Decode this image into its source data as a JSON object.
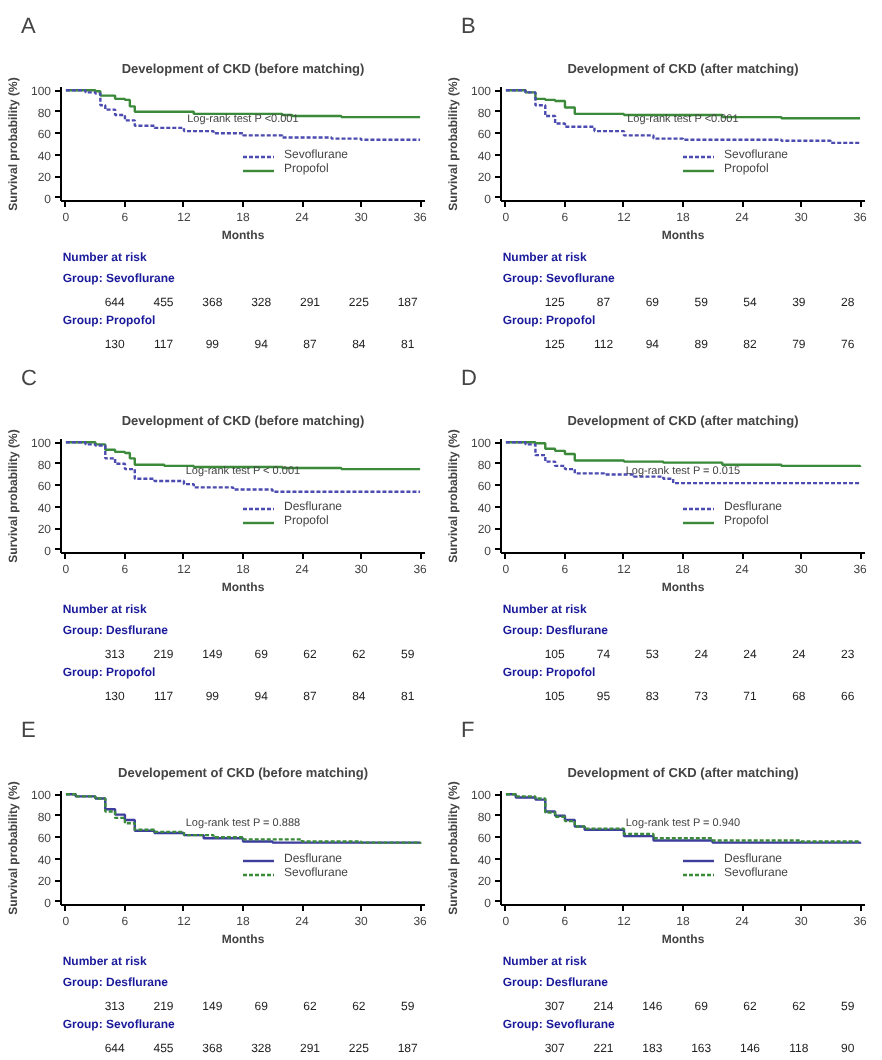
{
  "chart_data": [
    {
      "type": "step",
      "title": "Development of CKD (before matching)",
      "xlabel": "Months",
      "ylabel": "Survival probability (%)",
      "xlim": [
        -0.5,
        36.5
      ],
      "ylim": [
        -3,
        103
      ],
      "xticks": [
        0,
        6,
        12,
        18,
        24,
        30,
        36
      ],
      "yticks": [
        0,
        20,
        40,
        60,
        80,
        100
      ],
      "legend": "right",
      "annotations": [
        "A",
        "Log-rank test P <0.001",
        "Number at risk",
        "Group: Sevoflurane",
        "644 455 368 328 291 225 187",
        "Group: Propofol",
        "130 117 99 94 87 84 81"
      ],
      "series": [
        {
          "name": "Sevoflurane",
          "color": "#4b4bb0",
          "line_style": "dashed",
          "x": [
            0,
            2,
            3,
            3.5,
            4,
            5,
            6,
            7,
            9,
            12,
            15,
            18,
            22,
            27,
            30,
            36
          ],
          "values": [
            100,
            98,
            97,
            86,
            82,
            77,
            72,
            67,
            65,
            62,
            60,
            58,
            56,
            55,
            54,
            54
          ]
        },
        {
          "name": "Propofol",
          "color": "#3a8a3a",
          "line_style": "solid",
          "x": [
            0,
            3,
            3.5,
            5,
            6,
            6.5,
            7,
            13,
            22,
            23,
            28,
            36
          ],
          "values": [
            100,
            99,
            95,
            92,
            91,
            85,
            80,
            78,
            77,
            76,
            75,
            75
          ]
        }
      ]
    },
    {
      "type": "step",
      "title": "Development of CKD (after matching)",
      "xlabel": "Months",
      "ylabel": "Survival probability (%)",
      "xlim": [
        -0.5,
        36.5
      ],
      "ylim": [
        -3,
        103
      ],
      "xticks": [
        0,
        6,
        12,
        18,
        24,
        30,
        36
      ],
      "yticks": [
        0,
        20,
        40,
        60,
        80,
        100
      ],
      "legend": "right",
      "annotations": [
        "B",
        "Log-rank test P <0.001",
        "Number at risk",
        "Group: Sevoflurane",
        "125 87 69 59 54 39 28",
        "Group: Propofol",
        "125 112 94 89 82 79 76"
      ],
      "series": [
        {
          "name": "Sevoflurane",
          "color": "#4b4bb0",
          "line_style": "dashed",
          "x": [
            0,
            2,
            3,
            4,
            5,
            6,
            9,
            12,
            15,
            18,
            28,
            33,
            36
          ],
          "values": [
            100,
            98,
            86,
            76,
            69,
            66,
            62,
            58,
            55,
            54,
            53,
            51,
            51
          ]
        },
        {
          "name": "Propofol",
          "color": "#3a8a3a",
          "line_style": "solid",
          "x": [
            0,
            2,
            3,
            4,
            5,
            6,
            7,
            12,
            22,
            28,
            36
          ],
          "values": [
            100,
            98,
            92,
            91,
            90,
            84,
            78,
            77,
            75,
            74,
            74
          ]
        }
      ]
    },
    {
      "type": "step",
      "title": "Development of CKD (before matching)",
      "xlabel": "Months",
      "ylabel": "Survival probability (%)",
      "xlim": [
        -0.5,
        36.5
      ],
      "ylim": [
        -3,
        103
      ],
      "xticks": [
        0,
        6,
        12,
        18,
        24,
        30,
        36
      ],
      "yticks": [
        0,
        20,
        40,
        60,
        80,
        100
      ],
      "legend": "right",
      "annotations": [
        "C",
        "Log-rank test P < 0.001",
        "Number at risk",
        "Group: Desflurane",
        "313 219 149 69 62 62 59",
        "Group: Propofol",
        "130 117 99 94 87 84 81"
      ],
      "series": [
        {
          "name": "Desflurane",
          "color": "#4b4bb0",
          "line_style": "dashed",
          "x": [
            0,
            2,
            3,
            4,
            5,
            6,
            7,
            9,
            12,
            13,
            17,
            21,
            36
          ],
          "values": [
            100,
            98,
            97,
            85,
            80,
            75,
            66,
            64,
            61,
            58,
            56,
            54,
            54
          ]
        },
        {
          "name": "Propofol",
          "color": "#3a8a3a",
          "line_style": "solid",
          "x": [
            0,
            3,
            4,
            5,
            6,
            6.5,
            7,
            10,
            13,
            22,
            28,
            36
          ],
          "values": [
            100,
            98,
            93,
            91,
            90,
            85,
            79,
            78,
            77,
            76,
            75,
            75
          ]
        }
      ]
    },
    {
      "type": "step",
      "title": "Development of CKD (after matching)",
      "xlabel": "Months",
      "ylabel": "Survival probability (%)",
      "xlim": [
        -0.5,
        36.5
      ],
      "ylim": [
        -3,
        103
      ],
      "xticks": [
        0,
        6,
        12,
        18,
        24,
        30,
        36
      ],
      "yticks": [
        0,
        20,
        40,
        60,
        80,
        100
      ],
      "legend": "right",
      "annotations": [
        "D",
        "Log-rank test P = 0.015",
        "Number at risk",
        "Group: Desflurane",
        "105 74 53 24 24 24 23",
        "Group: Propofol",
        "105 95 83 73 71 68 66"
      ],
      "series": [
        {
          "name": "Desflurane",
          "color": "#4b4bb0",
          "line_style": "dashed",
          "x": [
            0,
            2,
            3,
            4,
            5,
            6,
            7,
            10,
            13,
            16,
            17,
            36
          ],
          "values": [
            100,
            98,
            88,
            82,
            78,
            75,
            71,
            70,
            68,
            66,
            62,
            62
          ]
        },
        {
          "name": "Propofol",
          "color": "#3a8a3a",
          "line_style": "solid",
          "x": [
            0,
            3,
            4,
            5,
            6,
            7,
            12,
            16,
            22,
            28,
            36
          ],
          "values": [
            100,
            99,
            94,
            92,
            89,
            83,
            82,
            81,
            79,
            78,
            77
          ]
        }
      ]
    },
    {
      "type": "step",
      "title": "Developement of CKD (before matching)",
      "xlabel": "Months",
      "ylabel": "Survival probability (%)",
      "xlim": [
        -0.5,
        36.5
      ],
      "ylim": [
        -3,
        103
      ],
      "xticks": [
        0,
        6,
        12,
        18,
        24,
        30,
        36
      ],
      "yticks": [
        0,
        20,
        40,
        60,
        80,
        100
      ],
      "legend": "right",
      "annotations": [
        "E",
        "Log-rank test P = 0.888",
        "Number at risk",
        "Group: Desflurane",
        "313 219 149 69 62 62 59",
        "Group: Sevoflurane",
        "644 455 368 328 291 225 187"
      ],
      "series": [
        {
          "name": "Desflurane",
          "color": "#3d3d9e",
          "line_style": "solid",
          "x": [
            0,
            1,
            3,
            4,
            5,
            6,
            7,
            9,
            12,
            14,
            18,
            21,
            36
          ],
          "values": [
            100,
            98,
            96,
            86,
            81,
            76,
            66,
            64,
            62,
            59,
            56,
            55,
            54
          ]
        },
        {
          "name": "Sevoflurane",
          "color": "#3a8a3a",
          "line_style": "dashed",
          "x": [
            0,
            1,
            3,
            4,
            5,
            6,
            7,
            9,
            12,
            15,
            18,
            24,
            30,
            36
          ],
          "values": [
            100,
            98,
            96,
            84,
            78,
            73,
            67,
            65,
            62,
            60,
            58,
            56,
            55,
            54
          ]
        }
      ]
    },
    {
      "type": "step",
      "title": "Development of CKD (after matching)",
      "xlabel": "Months",
      "ylabel": "Survival probability (%)",
      "xlim": [
        -0.5,
        36.5
      ],
      "ylim": [
        -3,
        103
      ],
      "xticks": [
        0,
        6,
        12,
        18,
        24,
        30,
        36
      ],
      "yticks": [
        0,
        20,
        40,
        60,
        80,
        100
      ],
      "legend": "right",
      "annotations": [
        "F",
        "Log-rank test P = 0.940",
        "Number at risk",
        "Group: Desflurane",
        "307 214 146 69 62 62 59",
        "Group: Sevoflurane",
        "307 221 183 163 146 118 90"
      ],
      "series": [
        {
          "name": "Desflurane",
          "color": "#3d3d9e",
          "line_style": "solid",
          "x": [
            0,
            1,
            3,
            4,
            5,
            6,
            7,
            8,
            12,
            15,
            21,
            36
          ],
          "values": [
            100,
            97,
            95,
            84,
            80,
            76,
            70,
            67,
            61,
            57,
            55,
            54
          ]
        },
        {
          "name": "Sevoflurane",
          "color": "#3a8a3a",
          "line_style": "dashed",
          "x": [
            0,
            1,
            3,
            4,
            5,
            6,
            7,
            8,
            12,
            15,
            21,
            30,
            36
          ],
          "values": [
            100,
            98,
            96,
            83,
            79,
            75,
            70,
            68,
            63,
            59,
            57,
            56,
            56
          ]
        }
      ]
    }
  ]
}
